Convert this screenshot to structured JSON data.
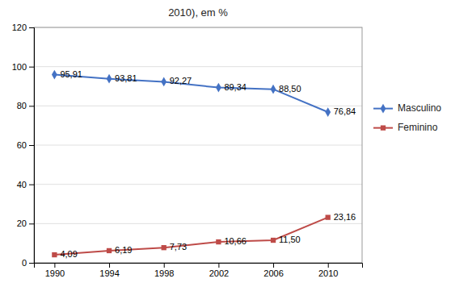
{
  "chart_data": {
    "type": "line",
    "title": "2010), em %",
    "x": [
      1990,
      1994,
      1998,
      2002,
      2006,
      2010
    ],
    "xlim": [
      1988.5,
      2012.5
    ],
    "xticks": [
      1990,
      1994,
      1998,
      2002,
      2006,
      2010
    ],
    "ylim": [
      0,
      120
    ],
    "yticks": [
      0,
      20,
      40,
      60,
      80,
      100,
      120
    ],
    "grid": true,
    "legend": "right",
    "data_labels": true,
    "series": [
      {
        "name": "Masculino",
        "color": "#4472C4",
        "marker": "diamond",
        "values": [
          95.91,
          93.81,
          92.27,
          89.34,
          88.5,
          76.84
        ],
        "value_labels": [
          "95,91",
          "93,81",
          "92,27",
          "89,34",
          "88,50",
          "76,84"
        ]
      },
      {
        "name": "Feminino",
        "color": "#BE4B48",
        "marker": "square",
        "values": [
          4.09,
          6.19,
          7.73,
          10.66,
          11.5,
          23.16
        ],
        "value_labels": [
          "4,09",
          "6,19",
          "7,73",
          "10,66",
          "11,50",
          "23,16"
        ]
      }
    ]
  }
}
